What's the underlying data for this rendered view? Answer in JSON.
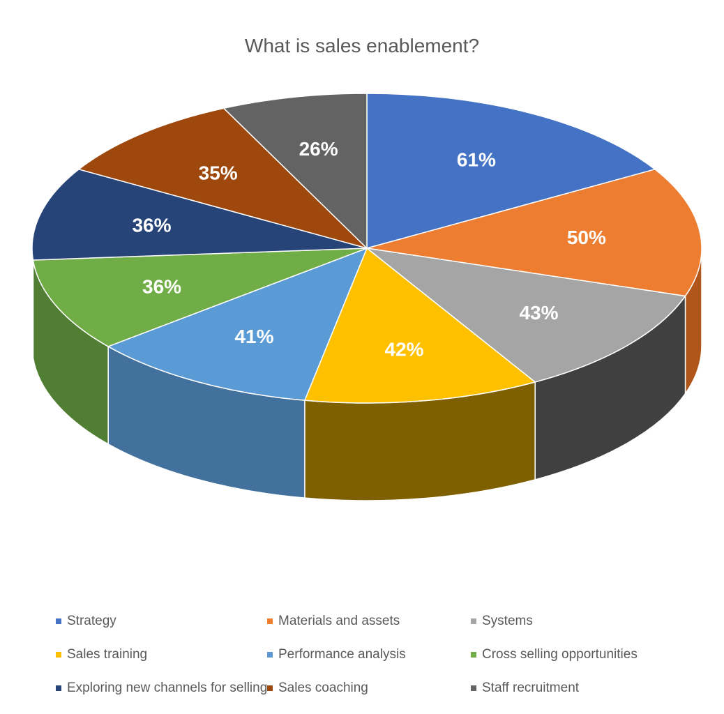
{
  "chart_data": {
    "type": "pie",
    "title": "What is sales enablement?",
    "categories": [
      "Strategy",
      "Materials and assets",
      "Systems",
      "Sales training",
      "Performance analysis",
      "Cross selling opportunities",
      "Exploring new channels for selling",
      "Sales coaching",
      "Staff recruitment"
    ],
    "values": [
      61,
      50,
      43,
      42,
      41,
      36,
      36,
      35,
      26
    ],
    "labels": [
      "61%",
      "50%",
      "43%",
      "42%",
      "41%",
      "36%",
      "36%",
      "35%",
      "26%"
    ],
    "colors": [
      "#4472C4",
      "#ED7D31",
      "#A5A5A5",
      "#FFC000",
      "#5B9BD5",
      "#70AD47",
      "#264478",
      "#9E480E",
      "#636363"
    ],
    "side_colors": [
      "#2F528F",
      "#B0561A",
      "#404040",
      "#7F6000",
      "#41719C",
      "#507E32",
      "#1A2F52",
      "#6E3209",
      "#3A3A3A"
    ],
    "legend_position": "bottom",
    "style": "3d"
  }
}
